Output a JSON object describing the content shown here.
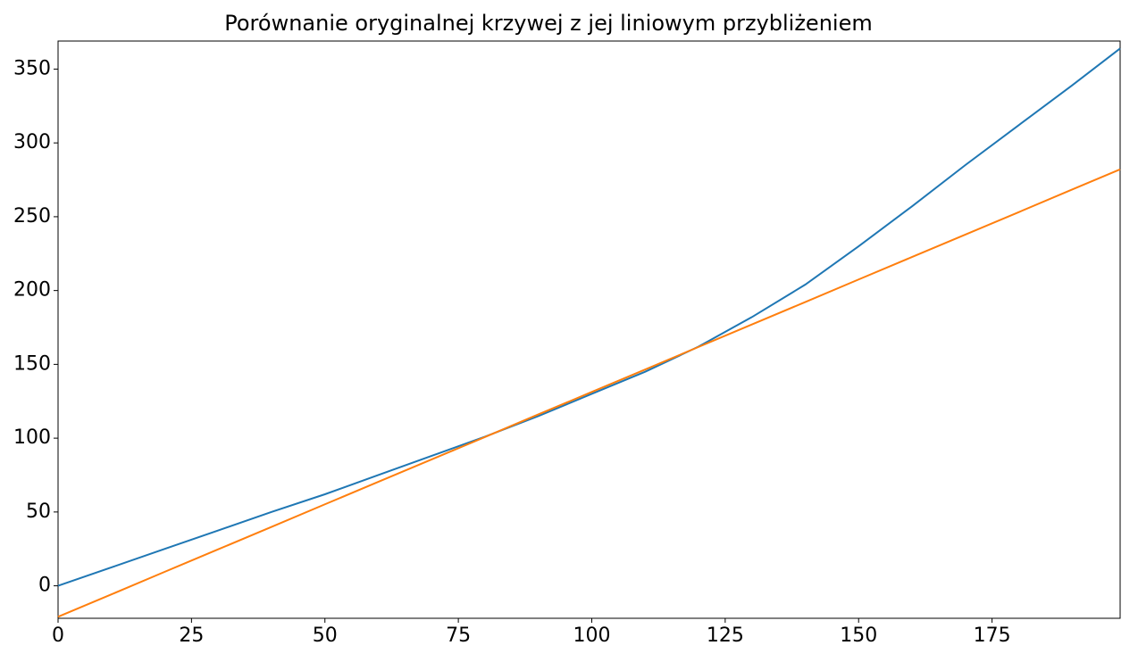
{
  "chart_data": {
    "type": "line",
    "title": "Porównanie oryginalnej krzywej z jej liniowym przybliżeniem",
    "x": [
      0,
      10,
      20,
      30,
      40,
      50,
      60,
      70,
      80,
      90,
      100,
      110,
      120,
      130,
      140,
      150,
      160,
      170,
      180,
      190,
      199
    ],
    "series": [
      {
        "color": "#1f77b4",
        "values": [
          0,
          12.5,
          25,
          37.5,
          50,
          62,
          75,
          88,
          101,
          115,
          130,
          145,
          162,
          182,
          204,
          230,
          257,
          285,
          312,
          339,
          364
        ]
      },
      {
        "color": "#ff7f0e",
        "values": [
          -21,
          -5.8,
          9.5,
          24.7,
          39.9,
          55.2,
          70.4,
          85.6,
          100.8,
          116.1,
          131.3,
          146.5,
          161.8,
          177.0,
          192.2,
          207.5,
          222.7,
          237.9,
          253.1,
          268.4,
          282.1
        ]
      }
    ],
    "xlim": [
      0,
      199
    ],
    "xticks": [
      0,
      25,
      50,
      75,
      100,
      125,
      150,
      175
    ],
    "ylim": [
      -22,
      369
    ],
    "yticks": [
      0,
      50,
      100,
      150,
      200,
      250,
      300,
      350
    ]
  }
}
